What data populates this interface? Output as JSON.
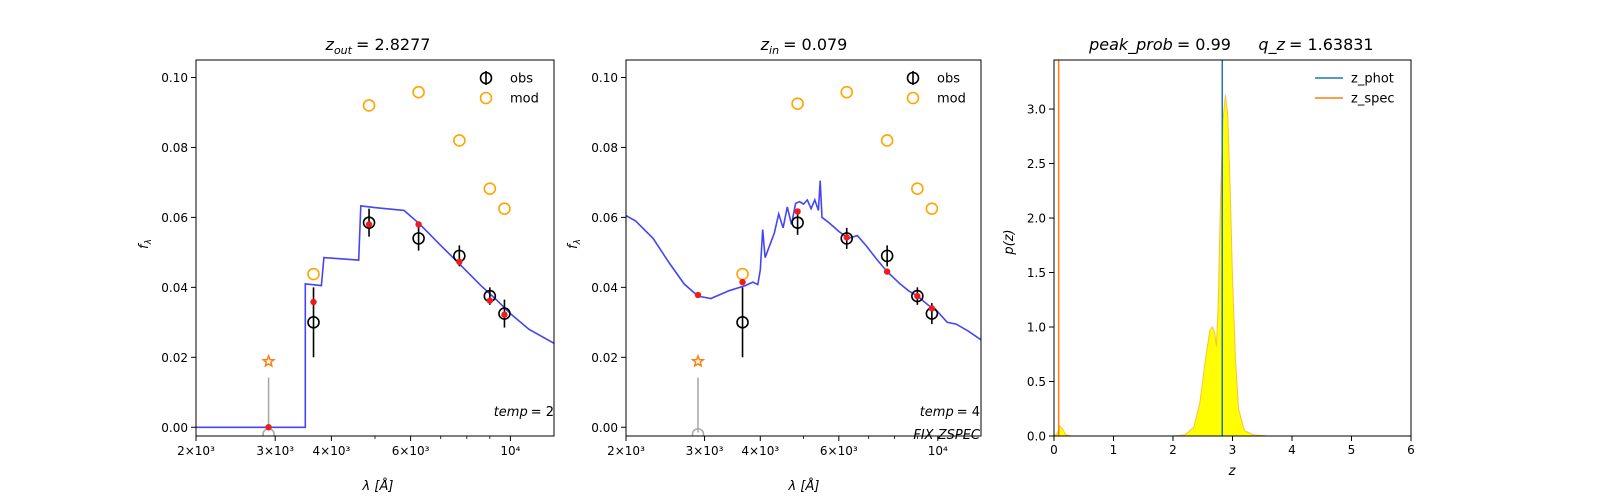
{
  "chart_data": [
    {
      "type": "scatter",
      "title_var": "z",
      "title_sub": "out",
      "title_value": "= 2.8277",
      "xlabel_main": "λ [",
      "xlabel_unit": "Å",
      "xlabel_end": "]",
      "ylabel_main": "f",
      "ylabel_sub": "λ",
      "xscale": "log",
      "xlim": [
        2000,
        12500
      ],
      "ylim": [
        -0.0025,
        0.105
      ],
      "x_ticks": [
        {
          "value": 2000,
          "label": "2×10³"
        },
        {
          "value": 3000,
          "label": "3×10³"
        },
        {
          "value": 4000,
          "label": "4×10³"
        },
        {
          "value": 6000,
          "label": "6×10³"
        },
        {
          "value": 10000,
          "label": "10⁴"
        }
      ],
      "x_minor": [
        5000,
        7000,
        8000,
        9000
      ],
      "y_ticks": [
        {
          "value": 0.0,
          "label": "0.00"
        },
        {
          "value": 0.02,
          "label": "0.02"
        },
        {
          "value": 0.04,
          "label": "0.04"
        },
        {
          "value": 0.06,
          "label": "0.06"
        },
        {
          "value": 0.08,
          "label": "0.08"
        },
        {
          "value": 0.1,
          "label": "0.10"
        }
      ],
      "legend": [
        {
          "label": "obs",
          "color": "#000000"
        },
        {
          "label": "mod",
          "color": "#ffa500"
        }
      ],
      "legend_position": "top-right",
      "annotation_lines": [
        {
          "var": "temp",
          "value": "= 2"
        }
      ],
      "obs": [
        {
          "x": 3650,
          "y": 0.03,
          "err": 0.01
        },
        {
          "x": 4850,
          "y": 0.0585,
          "err": 0.004
        },
        {
          "x": 6250,
          "y": 0.054,
          "err": 0.0035
        },
        {
          "x": 7700,
          "y": 0.049,
          "err": 0.003
        },
        {
          "x": 9000,
          "y": 0.0375,
          "err": 0.0025
        },
        {
          "x": 9700,
          "y": 0.0325,
          "err": 0.004
        }
      ],
      "mod": [
        {
          "x": 3650,
          "y": 0.0438
        },
        {
          "x": 4850,
          "y": 0.092
        },
        {
          "x": 6250,
          "y": 0.0958
        },
        {
          "x": 7700,
          "y": 0.082
        },
        {
          "x": 9000,
          "y": 0.0682
        },
        {
          "x": 9700,
          "y": 0.0625
        }
      ],
      "fit_points": [
        {
          "x": 2900,
          "y": 0.0
        },
        {
          "x": 3650,
          "y": 0.0358
        },
        {
          "x": 4850,
          "y": 0.058
        },
        {
          "x": 6250,
          "y": 0.058
        },
        {
          "x": 7700,
          "y": 0.0473
        },
        {
          "x": 9000,
          "y": 0.0362
        },
        {
          "x": 9700,
          "y": 0.0322
        }
      ],
      "star": {
        "x": 2900,
        "y": 0.0188
      },
      "upper_limit": {
        "x": 2900,
        "y0": 0.0,
        "y1": 0.0142
      },
      "open_marker_bottom": {
        "x": 2900,
        "y": -0.002
      },
      "sed": [
        [
          2000,
          0.0
        ],
        [
          3500,
          0.0
        ],
        [
          3500,
          0.041
        ],
        [
          3800,
          0.0405
        ],
        [
          3850,
          0.0485
        ],
        [
          4600,
          0.0478
        ],
        [
          4650,
          0.0633
        ],
        [
          5000,
          0.0628
        ],
        [
          5800,
          0.062
        ],
        [
          6300,
          0.058
        ],
        [
          7000,
          0.052
        ],
        [
          7800,
          0.046
        ],
        [
          8600,
          0.0405
        ],
        [
          9300,
          0.0365
        ],
        [
          10000,
          0.0325
        ],
        [
          11000,
          0.028
        ],
        [
          12500,
          0.024
        ]
      ]
    },
    {
      "type": "scatter",
      "title_var": "z",
      "title_sub": "in",
      "title_value": "= 0.079",
      "xlabel_main": "λ [",
      "xlabel_unit": "Å",
      "xlabel_end": "]",
      "ylabel_main": "f",
      "ylabel_sub": "λ",
      "xscale": "log",
      "xlim": [
        2000,
        12500
      ],
      "ylim": [
        -0.0025,
        0.105
      ],
      "x_ticks": [
        {
          "value": 2000,
          "label": "2×10³"
        },
        {
          "value": 3000,
          "label": "3×10³"
        },
        {
          "value": 4000,
          "label": "4×10³"
        },
        {
          "value": 6000,
          "label": "6×10³"
        },
        {
          "value": 10000,
          "label": "10⁴"
        }
      ],
      "x_minor": [
        5000,
        7000,
        8000,
        9000
      ],
      "y_ticks": [
        {
          "value": 0.0,
          "label": "0.00"
        },
        {
          "value": 0.02,
          "label": "0.02"
        },
        {
          "value": 0.04,
          "label": "0.04"
        },
        {
          "value": 0.06,
          "label": "0.06"
        },
        {
          "value": 0.08,
          "label": "0.08"
        },
        {
          "value": 0.1,
          "label": "0.10"
        }
      ],
      "legend": [
        {
          "label": "obs",
          "color": "#000000"
        },
        {
          "label": "mod",
          "color": "#ffa500"
        }
      ],
      "legend_position": "top-right",
      "annotation_lines": [
        {
          "var": "temp",
          "value": "= 4"
        },
        {
          "var": "FIX ZSPEC",
          "value": ""
        }
      ],
      "obs": [
        {
          "x": 3650,
          "y": 0.03,
          "err": 0.01
        },
        {
          "x": 4850,
          "y": 0.0585,
          "err": 0.0035
        },
        {
          "x": 6250,
          "y": 0.054,
          "err": 0.003
        },
        {
          "x": 7700,
          "y": 0.049,
          "err": 0.003
        },
        {
          "x": 9000,
          "y": 0.0375,
          "err": 0.0025
        },
        {
          "x": 9700,
          "y": 0.0325,
          "err": 0.003
        }
      ],
      "mod": [
        {
          "x": 3650,
          "y": 0.0438
        },
        {
          "x": 4850,
          "y": 0.0925
        },
        {
          "x": 6250,
          "y": 0.0958
        },
        {
          "x": 7700,
          "y": 0.082
        },
        {
          "x": 9000,
          "y": 0.0682
        },
        {
          "x": 9700,
          "y": 0.0625
        }
      ],
      "fit_points": [
        {
          "x": 2900,
          "y": 0.0378
        },
        {
          "x": 3650,
          "y": 0.0415
        },
        {
          "x": 4850,
          "y": 0.0617
        },
        {
          "x": 6250,
          "y": 0.0543
        },
        {
          "x": 7700,
          "y": 0.0445
        },
        {
          "x": 9000,
          "y": 0.0375
        },
        {
          "x": 9700,
          "y": 0.034
        }
      ],
      "star": {
        "x": 2900,
        "y": 0.0188
      },
      "upper_limit": {
        "x": 2900,
        "y0": -0.0015,
        "y1": 0.0142
      },
      "open_marker_bottom": {
        "x": 2900,
        "y": -0.002
      },
      "sed": [
        [
          2000,
          0.0605
        ],
        [
          2100,
          0.059
        ],
        [
          2300,
          0.054
        ],
        [
          2500,
          0.047
        ],
        [
          2700,
          0.041
        ],
        [
          2900,
          0.0375
        ],
        [
          3100,
          0.0368
        ],
        [
          3400,
          0.039
        ],
        [
          3700,
          0.0405
        ],
        [
          3850,
          0.0415
        ],
        [
          3950,
          0.0408
        ],
        [
          4000,
          0.045
        ],
        [
          4050,
          0.0565
        ],
        [
          4100,
          0.0485
        ],
        [
          4300,
          0.0555
        ],
        [
          4400,
          0.061
        ],
        [
          4500,
          0.057
        ],
        [
          4600,
          0.063
        ],
        [
          4700,
          0.058
        ],
        [
          4800,
          0.064
        ],
        [
          4900,
          0.0645
        ],
        [
          5000,
          0.0638
        ],
        [
          5100,
          0.065
        ],
        [
          5200,
          0.0625
        ],
        [
          5300,
          0.065
        ],
        [
          5400,
          0.062
        ],
        [
          5450,
          0.0705
        ],
        [
          5500,
          0.06
        ],
        [
          5700,
          0.0585
        ],
        [
          6000,
          0.056
        ],
        [
          6300,
          0.054
        ],
        [
          6600,
          0.0548
        ],
        [
          6900,
          0.052
        ],
        [
          7300,
          0.048
        ],
        [
          7700,
          0.0445
        ],
        [
          8200,
          0.0412
        ],
        [
          8600,
          0.039
        ],
        [
          9000,
          0.0375
        ],
        [
          9500,
          0.035
        ],
        [
          10000,
          0.033
        ],
        [
          10500,
          0.03
        ],
        [
          11000,
          0.0295
        ],
        [
          11700,
          0.0275
        ],
        [
          12500,
          0.025
        ]
      ]
    },
    {
      "type": "area",
      "title_left_var": "peak_prob",
      "title_left_value": "= 0.99",
      "title_right_var": "q_z",
      "title_right_value": "= 1.63831",
      "xlabel": "z",
      "ylabel": "p(z)",
      "xlim": [
        0,
        6
      ],
      "ylim": [
        0,
        3.45
      ],
      "x_ticks": [
        {
          "value": 0,
          "label": "0"
        },
        {
          "value": 1,
          "label": "1"
        },
        {
          "value": 2,
          "label": "2"
        },
        {
          "value": 3,
          "label": "3"
        },
        {
          "value": 4,
          "label": "4"
        },
        {
          "value": 5,
          "label": "5"
        },
        {
          "value": 6,
          "label": "6"
        }
      ],
      "y_ticks": [
        {
          "value": 0.0,
          "label": "0.0"
        },
        {
          "value": 0.5,
          "label": "0.5"
        },
        {
          "value": 1.0,
          "label": "1.0"
        },
        {
          "value": 1.5,
          "label": "1.5"
        },
        {
          "value": 2.0,
          "label": "2.0"
        },
        {
          "value": 2.5,
          "label": "2.5"
        },
        {
          "value": 3.0,
          "label": "3.0"
        }
      ],
      "legend": [
        {
          "label": "z_phot",
          "color": "#1f77b4"
        },
        {
          "label": "z_spec",
          "color": "#ff7f0e"
        }
      ],
      "legend_position": "top-right",
      "z_phot": 2.8277,
      "z_spec": 0.079,
      "fill_color": "#ffff00",
      "edge_color": "#ffbf3f",
      "pdf": [
        [
          0.0,
          0.0
        ],
        [
          0.05,
          0.02
        ],
        [
          0.1,
          0.09
        ],
        [
          0.15,
          0.06
        ],
        [
          0.2,
          0.01
        ],
        [
          0.3,
          0.0
        ],
        [
          2.0,
          0.0
        ],
        [
          2.2,
          0.01
        ],
        [
          2.35,
          0.08
        ],
        [
          2.45,
          0.3
        ],
        [
          2.55,
          0.72
        ],
        [
          2.62,
          0.97
        ],
        [
          2.66,
          1.0
        ],
        [
          2.7,
          0.95
        ],
        [
          2.73,
          0.82
        ],
        [
          2.76,
          1.2
        ],
        [
          2.8,
          2.2
        ],
        [
          2.84,
          2.9
        ],
        [
          2.88,
          3.13
        ],
        [
          2.92,
          2.95
        ],
        [
          2.96,
          2.3
        ],
        [
          3.0,
          1.45
        ],
        [
          3.05,
          0.7
        ],
        [
          3.1,
          0.25
        ],
        [
          3.2,
          0.05
        ],
        [
          3.35,
          0.01
        ],
        [
          3.6,
          0.0
        ],
        [
          5.0,
          0.0
        ]
      ]
    }
  ]
}
